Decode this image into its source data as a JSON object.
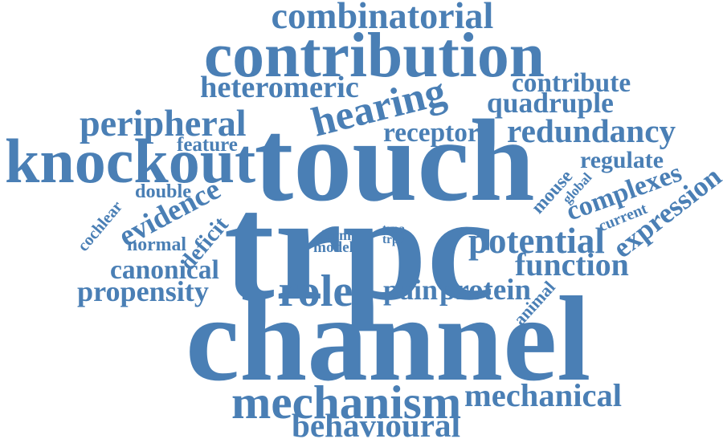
{
  "cloud": {
    "color": "#4a7fb5",
    "words": [
      "combinatorial",
      "contribution",
      "heteromeric",
      "contribute",
      "hearing",
      "quadruple",
      "peripheral",
      "receptor",
      "redundancy",
      "feature",
      "knockout",
      "touch",
      "regulate",
      "mouse",
      "global",
      "double",
      "complexes",
      "expression",
      "cochlear",
      "evidence",
      "trpc",
      "current",
      "deficit",
      "normal",
      "form",
      "model",
      "trpa",
      "trpv",
      "potential",
      "canonical",
      "function",
      "propensity",
      "role",
      "pain",
      "protein",
      "animal",
      "channel",
      "mechanism",
      "mechanical",
      "behavioural"
    ]
  }
}
